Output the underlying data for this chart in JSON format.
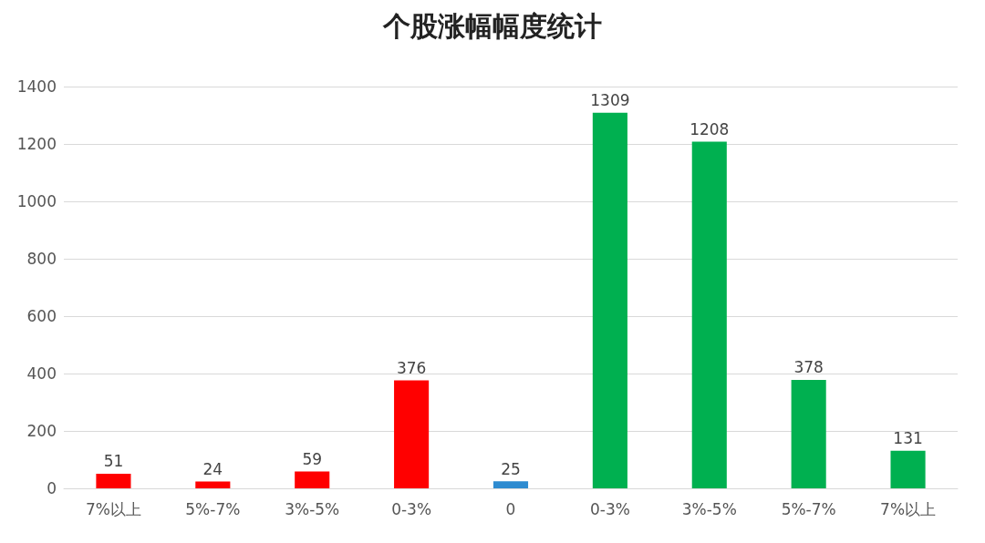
{
  "chart_data": {
    "type": "bar",
    "title": "个股涨幅幅度统计",
    "categories": [
      "7%以上",
      "5%-7%",
      "3%-5%",
      "0-3%",
      "0",
      "0-3%",
      "3%-5%",
      "5%-7%",
      "7%以上"
    ],
    "values": [
      51,
      24,
      59,
      376,
      25,
      1309,
      1208,
      378,
      131
    ],
    "colors": [
      "#ff0000",
      "#ff0000",
      "#ff0000",
      "#ff0000",
      "#2e8bd0",
      "#00b050",
      "#00b050",
      "#00b050",
      "#00b050"
    ],
    "ylim": [
      0,
      1400
    ],
    "yticks": [
      0,
      200,
      400,
      600,
      800,
      1000,
      1200,
      1400
    ],
    "grid": "y",
    "data_labels": true
  }
}
